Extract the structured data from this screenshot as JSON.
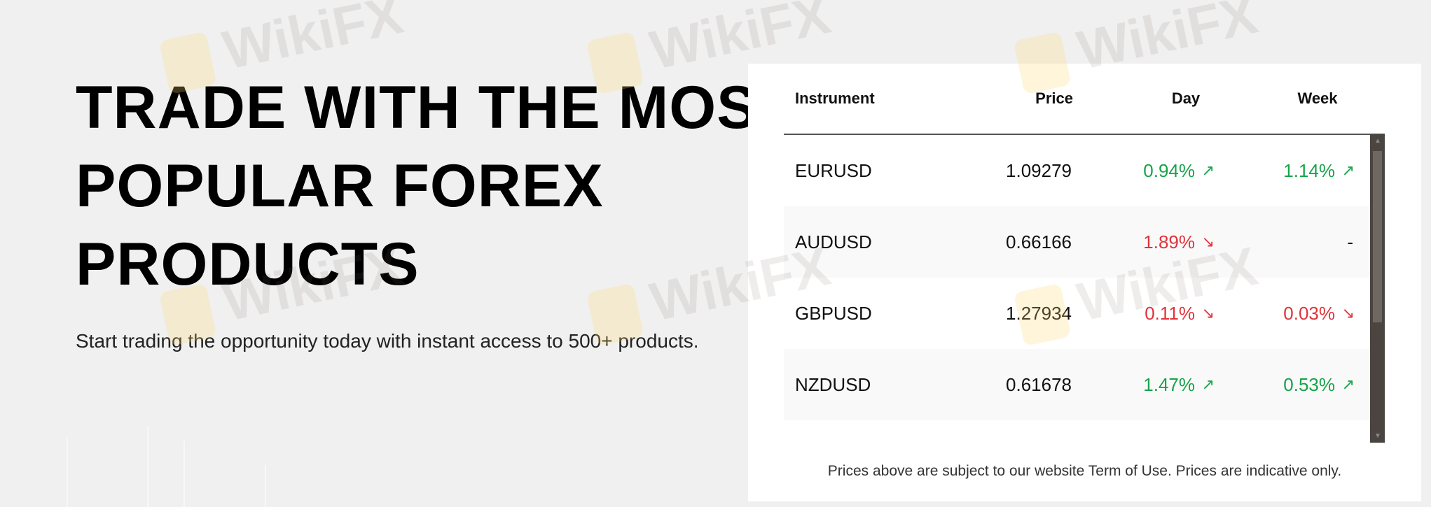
{
  "hero": {
    "title_lines": [
      "TRADE WITH THE MOST",
      "POPULAR FOREX",
      "PRODUCTS"
    ],
    "subtitle": "Start trading the opportunity today with instant access to 500+ products."
  },
  "table": {
    "headers": {
      "instrument": "Instrument",
      "price": "Price",
      "day": "Day",
      "week": "Week"
    },
    "rows": [
      {
        "instrument": "EURUSD",
        "price": "1.09279",
        "day": "0.94%",
        "day_dir": "up",
        "day_icon": "↗",
        "week": "1.14%",
        "week_dir": "up",
        "week_icon": "↗"
      },
      {
        "instrument": "AUDUSD",
        "price": "0.66166",
        "day": "1.89%",
        "day_dir": "down",
        "day_icon": "↘",
        "week": "-",
        "week_dir": "none",
        "week_icon": ""
      },
      {
        "instrument": "GBPUSD",
        "price": "1.27934",
        "day": "0.11%",
        "day_dir": "down",
        "day_icon": "↘",
        "week": "0.03%",
        "week_dir": "down",
        "week_icon": "↘"
      },
      {
        "instrument": "NZDUSD",
        "price": "0.61678",
        "day": "1.47%",
        "day_dir": "up",
        "day_icon": "↗",
        "week": "0.53%",
        "week_dir": "up",
        "week_icon": "↗"
      }
    ],
    "footer": "Prices above are subject to our website Term of Use. Prices are indicative only."
  },
  "colors": {
    "up": "#17a34a",
    "down": "#e0333a",
    "background": "#f0f0f0"
  },
  "watermark": "WikiFX"
}
